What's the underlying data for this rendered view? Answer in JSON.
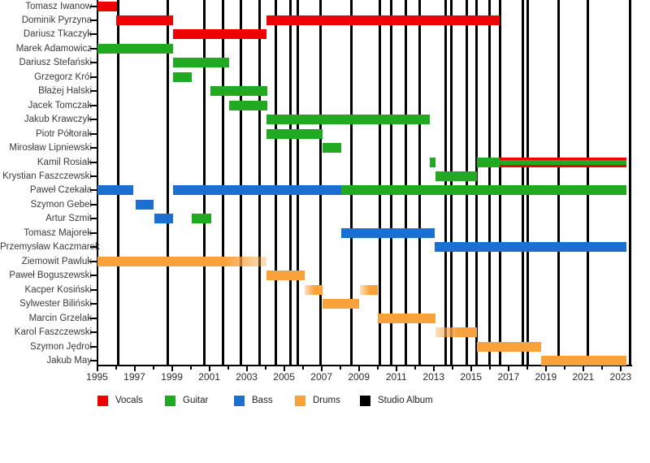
{
  "chart_data": {
    "type": "gantt-timeline",
    "title": "",
    "x_axis": {
      "min_year": 1995,
      "max_year": 2023.55,
      "labeled_tick_years": [
        1995,
        1997,
        1999,
        2001,
        2003,
        2005,
        2007,
        2009,
        2011,
        2013,
        2015,
        2017,
        2019,
        2021,
        2023
      ],
      "minor_ticks_every_year": true
    },
    "legend": [
      {
        "label": "Vocals",
        "color": "#ee0000"
      },
      {
        "label": "Guitar",
        "color": "#21aa21"
      },
      {
        "label": "Bass",
        "color": "#1b6fd0"
      },
      {
        "label": "Drums",
        "color": "#f9a23c"
      },
      {
        "label": "Studio Album",
        "color": "#000000"
      }
    ],
    "studio_album_years": [
      1996.15,
      1998.8,
      2000.75,
      2001.75,
      2002.7,
      2003.7,
      2004.55,
      2005.35,
      2005.75,
      2006.95,
      2008.6,
      2010.1,
      2010.75,
      2011.5,
      2012.25,
      2013.65,
      2013.95,
      2014.75,
      2015.3,
      2016.0,
      2016.55,
      2017.75,
      2018.05,
      2019.7,
      2021.25
    ],
    "members": [
      {
        "name": "Tomasz Iwanow",
        "segments": [
          {
            "role": "Vocals",
            "start": 1995.0,
            "end": 1996.05
          }
        ]
      },
      {
        "name": "Dominik Pyrzyna",
        "segments": [
          {
            "role": "Vocals",
            "start": 1996.0,
            "end": 1999.05
          },
          {
            "role": "Vocals",
            "start": 2004.05,
            "end": 2016.55
          }
        ]
      },
      {
        "name": "Dariusz Tkaczyk",
        "segments": [
          {
            "role": "Vocals",
            "start": 1999.05,
            "end": 2004.05
          }
        ]
      },
      {
        "name": "Marek Adamowicz",
        "segments": [
          {
            "role": "Guitar",
            "start": 1995.0,
            "end": 1999.05
          }
        ]
      },
      {
        "name": "Dariusz Stefański",
        "segments": [
          {
            "role": "Guitar",
            "start": 1999.05,
            "end": 2002.05
          }
        ]
      },
      {
        "name": "Grzegorz Król",
        "segments": [
          {
            "role": "Guitar",
            "start": 1999.05,
            "end": 2000.05
          }
        ]
      },
      {
        "name": "Błażej Halski",
        "segments": [
          {
            "role": "Guitar",
            "start": 2001.05,
            "end": 2004.1
          }
        ]
      },
      {
        "name": "Jacek Tomczak",
        "segments": [
          {
            "role": "Guitar",
            "start": 2002.05,
            "end": 2004.1
          }
        ]
      },
      {
        "name": "Jakub Krawczyk",
        "segments": [
          {
            "role": "Guitar",
            "start": 2004.05,
            "end": 2012.8
          }
        ]
      },
      {
        "name": "Piotr Półtorak",
        "segments": [
          {
            "role": "Guitar",
            "start": 2004.05,
            "end": 2007.05
          }
        ]
      },
      {
        "name": "Mirosław Lipniewski",
        "segments": [
          {
            "role": "Guitar",
            "start": 2007.05,
            "end": 2008.05
          }
        ]
      },
      {
        "name": "Kamil Rosiak",
        "segments": [
          {
            "role": "Guitar",
            "start": 2012.8,
            "end": 2013.1
          },
          {
            "role": "Guitar",
            "start": 2015.3,
            "end": 2016.55
          },
          {
            "role": "Vocals",
            "start": 2016.55,
            "end": 2023.3
          },
          {
            "role": "Guitar",
            "start": 2016.55,
            "end": 2023.3,
            "overlay_thin": true
          }
        ]
      },
      {
        "name": "Krystian Faszczewski",
        "segments": [
          {
            "role": "Guitar",
            "start": 2013.1,
            "end": 2015.3
          }
        ]
      },
      {
        "name": "Paweł Czekała",
        "segments": [
          {
            "role": "Bass",
            "start": 1995.0,
            "end": 1996.95
          },
          {
            "role": "Bass",
            "start": 1999.05,
            "end": 2008.05
          },
          {
            "role": "Guitar",
            "start": 2008.05,
            "end": 2023.3
          }
        ]
      },
      {
        "name": "Szymon Gebel",
        "segments": [
          {
            "role": "Bass",
            "start": 1997.05,
            "end": 1998.0
          }
        ]
      },
      {
        "name": "Artur Szmit",
        "segments": [
          {
            "role": "Bass",
            "start": 1998.05,
            "end": 1999.05
          },
          {
            "role": "Guitar",
            "start": 2000.05,
            "end": 2001.1
          }
        ]
      },
      {
        "name": "Tomasz Majorek",
        "segments": [
          {
            "role": "Bass",
            "start": 2008.05,
            "end": 2013.05
          }
        ]
      },
      {
        "name": "Przemysław Kaczmarek",
        "segments": [
          {
            "role": "Bass",
            "start": 2013.05,
            "end": 2023.3
          }
        ]
      },
      {
        "name": "Ziemowit Pawluk",
        "segments": [
          {
            "role": "Drums",
            "start": 1995.0,
            "end": 2004.05,
            "fade": "right"
          }
        ]
      },
      {
        "name": "Paweł Boguszewski",
        "segments": [
          {
            "role": "Drums",
            "start": 2004.05,
            "end": 2006.1
          }
        ]
      },
      {
        "name": "Kacper Kosiński",
        "segments": [
          {
            "role": "Drums",
            "start": 2006.1,
            "end": 2007.05,
            "fade": "left"
          },
          {
            "role": "Drums",
            "start": 2009.05,
            "end": 2010.0,
            "fade": "left"
          }
        ]
      },
      {
        "name": "Sylwester Biliński",
        "segments": [
          {
            "role": "Drums",
            "start": 2007.05,
            "end": 2009.0
          }
        ]
      },
      {
        "name": "Marcin Grzelak",
        "segments": [
          {
            "role": "Drums",
            "start": 2010.0,
            "end": 2013.1
          }
        ]
      },
      {
        "name": "Karol Faszczewski",
        "segments": [
          {
            "role": "Drums",
            "start": 2013.1,
            "end": 2015.3,
            "fade": "left"
          }
        ]
      },
      {
        "name": "Szymon Jędrol",
        "segments": [
          {
            "role": "Drums",
            "start": 2015.3,
            "end": 2018.75
          }
        ]
      },
      {
        "name": "Jakub May",
        "segments": [
          {
            "role": "Drums",
            "start": 2018.75,
            "end": 2023.3
          }
        ]
      }
    ]
  },
  "colors": {
    "Vocals": "#ee0000",
    "Guitar": "#21aa21",
    "Bass": "#1b6fd0",
    "Drums": "#f9a23c",
    "album_line": "#000000",
    "axis": "#000000",
    "label_text": "#3a3a3a"
  }
}
